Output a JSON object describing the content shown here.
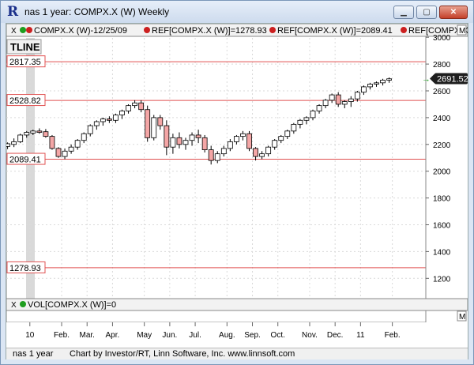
{
  "window": {
    "title": "nas 1 year: COMPX.X (W) Weekly",
    "logo": "R",
    "min_label": "▁",
    "max_label": "▢",
    "close_label": "✕"
  },
  "legend": {
    "series1": "COMPX.X (W)-12/25/09",
    "series2": "REF[COMPX.X (W)]=1278.93",
    "series3": "REF[COMPX.X (W)]=2089.41",
    "series4": "REF[COMPX.X (W)]=",
    "close_label": "X",
    "min_label": "M",
    "tline_button": "TLINE"
  },
  "volume_legend": {
    "text": "VOL[COMPX.X (W)]=0",
    "close_label": "X",
    "min_label": "M"
  },
  "status": {
    "left": "nas 1 year",
    "right": "Chart by Investor/RT, Linn Software, Inc. www.linnsoft.com"
  },
  "colors": {
    "up_candle": "#ffffff",
    "down_candle": "#f4a6a6",
    "ref_line": "#e05050",
    "last_price_bg": "#1e1e1e",
    "marker": "#20a020"
  },
  "chart_data": {
    "type": "candlestick",
    "ylim": [
      1100,
      3000
    ],
    "y_ticks": [
      1200,
      1400,
      1600,
      1800,
      2000,
      2200,
      2400,
      2600,
      2800,
      3000
    ],
    "x_tick_labels": [
      "10",
      "Feb.",
      "Mar.",
      "Apr.",
      "May",
      "Jun.",
      "Jul.",
      "Aug.",
      "Sep.",
      "Oct.",
      "Nov.",
      "Dec.",
      "11",
      "Feb."
    ],
    "x_tick_index": [
      5,
      10,
      14,
      18,
      23,
      27,
      31,
      36,
      40,
      44,
      49,
      53,
      57,
      62
    ],
    "last_price": "2691.52",
    "reference_lines": [
      {
        "value": 2817.35,
        "label": "2817.35"
      },
      {
        "value": 2528.82,
        "label": "2528.82"
      },
      {
        "value": 2089.41,
        "label": "2089.41"
      },
      {
        "value": 1278.93,
        "label": "1278.93"
      }
    ],
    "candles": [
      {
        "o": 2150,
        "h": 2200,
        "l": 2140,
        "c": 2190
      },
      {
        "o": 2185,
        "h": 2215,
        "l": 2165,
        "c": 2205
      },
      {
        "o": 2200,
        "h": 2245,
        "l": 2180,
        "c": 2220
      },
      {
        "o": 2220,
        "h": 2280,
        "l": 2210,
        "c": 2270
      },
      {
        "o": 2270,
        "h": 2300,
        "l": 2250,
        "c": 2290
      },
      {
        "o": 2285,
        "h": 2310,
        "l": 2270,
        "c": 2300
      },
      {
        "o": 2300,
        "h": 2320,
        "l": 2280,
        "c": 2290
      },
      {
        "o": 2295,
        "h": 2315,
        "l": 2250,
        "c": 2260
      },
      {
        "o": 2260,
        "h": 2270,
        "l": 2160,
        "c": 2170
      },
      {
        "o": 2170,
        "h": 2180,
        "l": 2100,
        "c": 2110
      },
      {
        "o": 2110,
        "h": 2170,
        "l": 2090,
        "c": 2150
      },
      {
        "o": 2150,
        "h": 2200,
        "l": 2130,
        "c": 2180
      },
      {
        "o": 2180,
        "h": 2240,
        "l": 2160,
        "c": 2230
      },
      {
        "o": 2230,
        "h": 2290,
        "l": 2210,
        "c": 2280
      },
      {
        "o": 2280,
        "h": 2350,
        "l": 2260,
        "c": 2340
      },
      {
        "o": 2340,
        "h": 2380,
        "l": 2310,
        "c": 2370
      },
      {
        "o": 2370,
        "h": 2400,
        "l": 2340,
        "c": 2390
      },
      {
        "o": 2390,
        "h": 2410,
        "l": 2360,
        "c": 2380
      },
      {
        "o": 2380,
        "h": 2430,
        "l": 2360,
        "c": 2420
      },
      {
        "o": 2420,
        "h": 2460,
        "l": 2390,
        "c": 2450
      },
      {
        "o": 2450,
        "h": 2500,
        "l": 2430,
        "c": 2490
      },
      {
        "o": 2490,
        "h": 2530,
        "l": 2470,
        "c": 2510
      },
      {
        "o": 2510,
        "h": 2530,
        "l": 2440,
        "c": 2460
      },
      {
        "o": 2460,
        "h": 2490,
        "l": 2220,
        "c": 2250
      },
      {
        "o": 2250,
        "h": 2420,
        "l": 2230,
        "c": 2400
      },
      {
        "o": 2400,
        "h": 2420,
        "l": 2310,
        "c": 2340
      },
      {
        "o": 2340,
        "h": 2380,
        "l": 2120,
        "c": 2180
      },
      {
        "o": 2180,
        "h": 2280,
        "l": 2130,
        "c": 2250
      },
      {
        "o": 2250,
        "h": 2290,
        "l": 2170,
        "c": 2200
      },
      {
        "o": 2200,
        "h": 2250,
        "l": 2160,
        "c": 2230
      },
      {
        "o": 2230,
        "h": 2290,
        "l": 2190,
        "c": 2270
      },
      {
        "o": 2270,
        "h": 2310,
        "l": 2210,
        "c": 2250
      },
      {
        "o": 2250,
        "h": 2270,
        "l": 2140,
        "c": 2160
      },
      {
        "o": 2160,
        "h": 2190,
        "l": 2050,
        "c": 2080
      },
      {
        "o": 2080,
        "h": 2150,
        "l": 2060,
        "c": 2130
      },
      {
        "o": 2130,
        "h": 2190,
        "l": 2110,
        "c": 2170
      },
      {
        "o": 2170,
        "h": 2240,
        "l": 2150,
        "c": 2220
      },
      {
        "o": 2220,
        "h": 2270,
        "l": 2200,
        "c": 2260
      },
      {
        "o": 2260,
        "h": 2300,
        "l": 2230,
        "c": 2280
      },
      {
        "o": 2280,
        "h": 2300,
        "l": 2150,
        "c": 2170
      },
      {
        "o": 2170,
        "h": 2180,
        "l": 2080,
        "c": 2110
      },
      {
        "o": 2110,
        "h": 2150,
        "l": 2090,
        "c": 2130
      },
      {
        "o": 2130,
        "h": 2190,
        "l": 2110,
        "c": 2180
      },
      {
        "o": 2180,
        "h": 2240,
        "l": 2160,
        "c": 2230
      },
      {
        "o": 2230,
        "h": 2270,
        "l": 2210,
        "c": 2260
      },
      {
        "o": 2260,
        "h": 2310,
        "l": 2240,
        "c": 2300
      },
      {
        "o": 2300,
        "h": 2360,
        "l": 2280,
        "c": 2350
      },
      {
        "o": 2350,
        "h": 2390,
        "l": 2320,
        "c": 2380
      },
      {
        "o": 2380,
        "h": 2410,
        "l": 2350,
        "c": 2400
      },
      {
        "o": 2400,
        "h": 2460,
        "l": 2380,
        "c": 2450
      },
      {
        "o": 2450,
        "h": 2500,
        "l": 2430,
        "c": 2490
      },
      {
        "o": 2490,
        "h": 2540,
        "l": 2470,
        "c": 2530
      },
      {
        "o": 2530,
        "h": 2580,
        "l": 2510,
        "c": 2570
      },
      {
        "o": 2570,
        "h": 2590,
        "l": 2480,
        "c": 2500
      },
      {
        "o": 2500,
        "h": 2530,
        "l": 2470,
        "c": 2520
      },
      {
        "o": 2520,
        "h": 2560,
        "l": 2480,
        "c": 2540
      },
      {
        "o": 2540,
        "h": 2600,
        "l": 2520,
        "c": 2590
      },
      {
        "o": 2590,
        "h": 2640,
        "l": 2570,
        "c": 2630
      },
      {
        "o": 2630,
        "h": 2660,
        "l": 2610,
        "c": 2650
      },
      {
        "o": 2650,
        "h": 2670,
        "l": 2630,
        "c": 2660
      },
      {
        "o": 2660,
        "h": 2690,
        "l": 2640,
        "c": 2680
      },
      {
        "o": 2680,
        "h": 2700,
        "l": 2660,
        "c": 2690
      }
    ]
  }
}
